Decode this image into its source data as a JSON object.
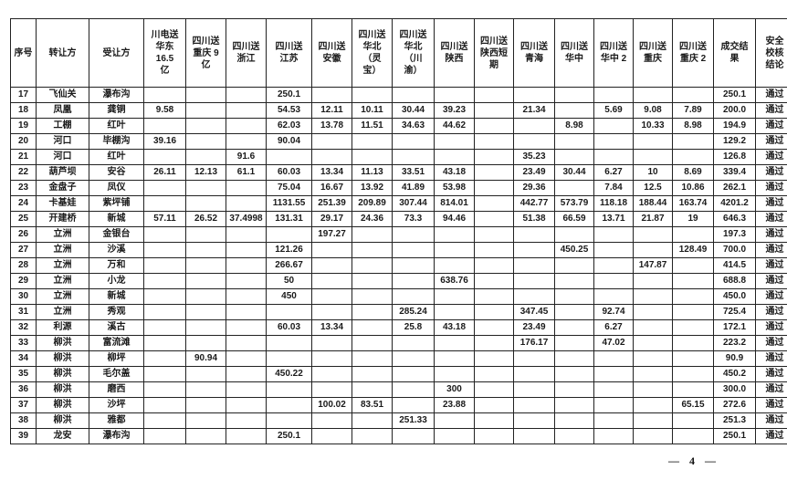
{
  "table": {
    "headers": [
      "序号",
      "转让方",
      "受让方",
      "川电送\n华东\n16.5\n亿",
      "四川送\n重庆 9\n亿",
      "四川送\n浙江",
      "四川送\n江苏",
      "四川送\n安徽",
      "四川送\n华北\n（灵\n宝）",
      "四川送\n华北\n（川\n渝）",
      "四川送\n陕西",
      "四川送\n陕西短\n期",
      "四川送\n青海",
      "四川送\n华中",
      "四川送\n华中 2",
      "四川送\n重庆",
      "四川送\n重庆 2",
      "成交结\n果",
      "安全\n校核\n结论"
    ],
    "rows": [
      [
        "17",
        "飞仙关",
        "瀑布沟",
        "",
        "",
        "",
        "250.1",
        "",
        "",
        "",
        "",
        "",
        "",
        "",
        "",
        "",
        "",
        "250.1",
        "通过"
      ],
      [
        "18",
        "凤凰",
        "龚铜",
        "9.58",
        "",
        "",
        "54.53",
        "12.11",
        "10.11",
        "30.44",
        "39.23",
        "",
        "21.34",
        "",
        "5.69",
        "9.08",
        "7.89",
        "200.0",
        "通过"
      ],
      [
        "19",
        "工棚",
        "红叶",
        "",
        "",
        "",
        "62.03",
        "13.78",
        "11.51",
        "34.63",
        "44.62",
        "",
        "",
        "8.98",
        "",
        "10.33",
        "8.98",
        "194.9",
        "通过"
      ],
      [
        "20",
        "河口",
        "毕棚沟",
        "39.16",
        "",
        "",
        "90.04",
        "",
        "",
        "",
        "",
        "",
        "",
        "",
        "",
        "",
        "",
        "129.2",
        "通过"
      ],
      [
        "21",
        "河口",
        "红叶",
        "",
        "",
        "91.6",
        "",
        "",
        "",
        "",
        "",
        "",
        "35.23",
        "",
        "",
        "",
        "",
        "126.8",
        "通过"
      ],
      [
        "22",
        "葫芦坝",
        "安谷",
        "26.11",
        "12.13",
        "61.1",
        "60.03",
        "13.34",
        "11.13",
        "33.51",
        "43.18",
        "",
        "23.49",
        "30.44",
        "6.27",
        "10",
        "8.69",
        "339.4",
        "通过"
      ],
      [
        "23",
        "金盘子",
        "凤仪",
        "",
        "",
        "",
        "75.04",
        "16.67",
        "13.92",
        "41.89",
        "53.98",
        "",
        "29.36",
        "",
        "7.84",
        "12.5",
        "10.86",
        "262.1",
        "通过"
      ],
      [
        "24",
        "卡基娃",
        "紫坪铺",
        "",
        "",
        "",
        "1131.55",
        "251.39",
        "209.89",
        "307.44",
        "814.01",
        "",
        "442.77",
        "573.79",
        "118.18",
        "188.44",
        "163.74",
        "4201.2",
        "通过"
      ],
      [
        "25",
        "开建桥",
        "新城",
        "57.11",
        "26.52",
        "37.4998",
        "131.31",
        "29.17",
        "24.36",
        "73.3",
        "94.46",
        "",
        "51.38",
        "66.59",
        "13.71",
        "21.87",
        "19",
        "646.3",
        "通过"
      ],
      [
        "26",
        "立洲",
        "金银台",
        "",
        "",
        "",
        "",
        "197.27",
        "",
        "",
        "",
        "",
        "",
        "",
        "",
        "",
        "",
        "197.3",
        "通过"
      ],
      [
        "27",
        "立洲",
        "沙溪",
        "",
        "",
        "",
        "121.26",
        "",
        "",
        "",
        "",
        "",
        "",
        "450.25",
        "",
        "",
        "128.49",
        "700.0",
        "通过"
      ],
      [
        "28",
        "立洲",
        "万和",
        "",
        "",
        "",
        "266.67",
        "",
        "",
        "",
        "",
        "",
        "",
        "",
        "",
        "147.87",
        "",
        "414.5",
        "通过"
      ],
      [
        "29",
        "立洲",
        "小龙",
        "",
        "",
        "",
        "50",
        "",
        "",
        "",
        "638.76",
        "",
        "",
        "",
        "",
        "",
        "",
        "688.8",
        "通过"
      ],
      [
        "30",
        "立洲",
        "新城",
        "",
        "",
        "",
        "450",
        "",
        "",
        "",
        "",
        "",
        "",
        "",
        "",
        "",
        "",
        "450.0",
        "通过"
      ],
      [
        "31",
        "立洲",
        "秀观",
        "",
        "",
        "",
        "",
        "",
        "",
        "285.24",
        "",
        "",
        "347.45",
        "",
        "92.74",
        "",
        "",
        "725.4",
        "通过"
      ],
      [
        "32",
        "利源",
        "溪古",
        "",
        "",
        "",
        "60.03",
        "13.34",
        "",
        "25.8",
        "43.18",
        "",
        "23.49",
        "",
        "6.27",
        "",
        "",
        "172.1",
        "通过"
      ],
      [
        "33",
        "柳洪",
        "富流滩",
        "",
        "",
        "",
        "",
        "",
        "",
        "",
        "",
        "",
        "176.17",
        "",
        "47.02",
        "",
        "",
        "223.2",
        "通过"
      ],
      [
        "34",
        "柳洪",
        "柳坪",
        "",
        "90.94",
        "",
        "",
        "",
        "",
        "",
        "",
        "",
        "",
        "",
        "",
        "",
        "",
        "90.9",
        "通过"
      ],
      [
        "35",
        "柳洪",
        "毛尔盖",
        "",
        "",
        "",
        "450.22",
        "",
        "",
        "",
        "",
        "",
        "",
        "",
        "",
        "",
        "",
        "450.2",
        "通过"
      ],
      [
        "36",
        "柳洪",
        "磨西",
        "",
        "",
        "",
        "",
        "",
        "",
        "",
        "300",
        "",
        "",
        "",
        "",
        "",
        "",
        "300.0",
        "通过"
      ],
      [
        "37",
        "柳洪",
        "沙坪",
        "",
        "",
        "",
        "",
        "100.02",
        "83.51",
        "",
        "23.88",
        "",
        "",
        "",
        "",
        "",
        "65.15",
        "272.6",
        "通过"
      ],
      [
        "38",
        "柳洪",
        "雅都",
        "",
        "",
        "",
        "",
        "",
        "",
        "251.33",
        "",
        "",
        "",
        "",
        "",
        "",
        "",
        "251.3",
        "通过"
      ],
      [
        "39",
        "龙安",
        "瀑布沟",
        "",
        "",
        "",
        "250.1",
        "",
        "",
        "",
        "",
        "",
        "",
        "",
        "",
        "",
        "",
        "250.1",
        "通过"
      ]
    ]
  },
  "footer": {
    "page_label": "— 4 —"
  }
}
